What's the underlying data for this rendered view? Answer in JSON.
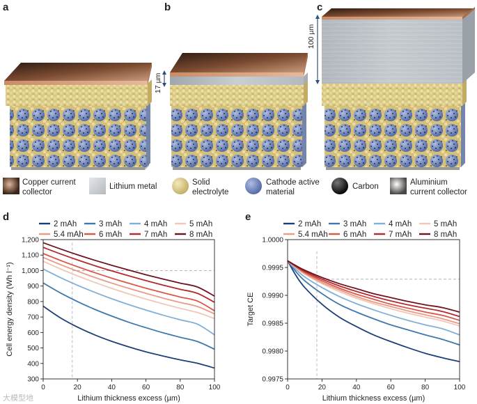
{
  "panels": {
    "a": "a",
    "b": "b",
    "c": "c",
    "d": "d",
    "e": "e"
  },
  "annotations": {
    "b_thickness": "17 µm",
    "c_thickness": "100 µm"
  },
  "material_legend": [
    {
      "line1": "Copper current",
      "line2": "collector",
      "icon": "copper-swatch-icon",
      "color": "#6a3a1f"
    },
    {
      "line1": "Lithium metal",
      "line2": "",
      "icon": "lithium-swatch-icon",
      "color": "#cfd3d8"
    },
    {
      "line1": "Solid",
      "line2": "electrolyte",
      "icon": "electrolyte-sphere-icon",
      "color": "#d9c98a"
    },
    {
      "line1": "Cathode active",
      "line2": "material",
      "icon": "cathode-sphere-icon",
      "color": "#6f86bd"
    },
    {
      "line1": "Carbon",
      "line2": "",
      "icon": "carbon-sphere-icon",
      "color": "#111111"
    },
    {
      "line1": "Aluminium",
      "line2": "current collector",
      "icon": "aluminium-swatch-icon",
      "color": "#b0aca8"
    }
  ],
  "watermark": "大模型地",
  "chart_data": [
    {
      "type": "line",
      "panel": "d",
      "title": "",
      "xlabel": "Lithium thickness excess (µm)",
      "ylabel": "Cell energy density (Wh l⁻¹)",
      "xlim": [
        0,
        100
      ],
      "ylim": [
        300,
        1200
      ],
      "xticks": [
        0,
        20,
        40,
        60,
        80,
        100
      ],
      "yticks": [
        300,
        400,
        500,
        600,
        700,
        800,
        900,
        1000,
        1100,
        1200
      ],
      "ytick_labels": [
        "300",
        "400",
        "500",
        "600",
        "700",
        "800",
        "900",
        "1,000",
        "1,100",
        "1,200"
      ],
      "reference_lines": {
        "vertical_x": 17,
        "horizontal_y": 1000
      },
      "x": [
        0,
        10,
        20,
        30,
        40,
        50,
        60,
        70,
        80,
        90,
        100
      ],
      "series": [
        {
          "name": "2 mAh",
          "color": "#1c3f78",
          "values": [
            770,
            695,
            635,
            585,
            543,
            507,
            475,
            448,
            423,
            401,
            370
          ]
        },
        {
          "name": "3 mAh",
          "color": "#3e78ad",
          "values": [
            920,
            856,
            800,
            750,
            706,
            666,
            631,
            598,
            569,
            542,
            492
          ]
        },
        {
          "name": "4 mAh",
          "color": "#7fb0d8",
          "values": [
            1010,
            955,
            905,
            860,
            818,
            780,
            745,
            712,
            682,
            654,
            585
          ]
        },
        {
          "name": "5 mAh",
          "color": "#f0c8b6",
          "values": [
            1060,
            1011,
            966,
            924,
            885,
            849,
            816,
            785,
            756,
            729,
            690
          ]
        },
        {
          "name": "5.4 mAh",
          "color": "#ea9a86",
          "values": [
            1085,
            1039,
            996,
            956,
            919,
            885,
            853,
            822,
            794,
            768,
            720
          ]
        },
        {
          "name": "6 mAh",
          "color": "#d9574a",
          "values": [
            1110,
            1066,
            1025,
            987,
            951,
            918,
            886,
            857,
            829,
            803,
            740
          ]
        },
        {
          "name": "7 mAh",
          "color": "#b32a2e",
          "values": [
            1150,
            1108,
            1069,
            1032,
            998,
            966,
            935,
            906,
            879,
            853,
            795
          ]
        },
        {
          "name": "8 mAh",
          "color": "#6e1420",
          "values": [
            1180,
            1140,
            1102,
            1067,
            1034,
            1003,
            973,
            945,
            919,
            894,
            835
          ]
        }
      ]
    },
    {
      "type": "line",
      "panel": "e",
      "title": "",
      "xlabel": "Lithium thickness excess (µm)",
      "ylabel": "Target CE",
      "xlim": [
        0,
        100
      ],
      "ylim": [
        0.9975,
        1.0
      ],
      "xticks": [
        0,
        20,
        40,
        60,
        80,
        100
      ],
      "yticks": [
        0.9975,
        0.998,
        0.9985,
        0.999,
        0.9995,
        1.0
      ],
      "ytick_labels": [
        "0.9975",
        "0.9980",
        "0.9985",
        "0.9990",
        "0.9995",
        "1.0000"
      ],
      "reference_lines": {
        "vertical_x": 17,
        "horizontal_y": 0.99929
      },
      "x": [
        0,
        5,
        10,
        20,
        30,
        40,
        50,
        60,
        70,
        80,
        90,
        100
      ],
      "series": [
        {
          "name": "2 mAh",
          "color": "#1c3f78",
          "values": [
            0.99962,
            0.99935,
            0.99914,
            0.99884,
            0.99861,
            0.99844,
            0.99829,
            0.99817,
            0.99806,
            0.99796,
            0.99788,
            0.99781
          ]
        },
        {
          "name": "3 mAh",
          "color": "#3e78ad",
          "values": [
            0.99962,
            0.99942,
            0.99926,
            0.99903,
            0.99884,
            0.9987,
            0.99858,
            0.99847,
            0.99838,
            0.99829,
            0.99821,
            0.99811
          ]
        },
        {
          "name": "4 mAh",
          "color": "#7fb0d8",
          "values": [
            0.99962,
            0.99946,
            0.99933,
            0.99914,
            0.99898,
            0.99885,
            0.99874,
            0.99864,
            0.99855,
            0.99847,
            0.9984,
            0.99829
          ]
        },
        {
          "name": "5 mAh",
          "color": "#f0c8b6",
          "values": [
            0.99962,
            0.99949,
            0.99938,
            0.99921,
            0.99907,
            0.99895,
            0.99885,
            0.99876,
            0.99868,
            0.99861,
            0.99854,
            0.99845
          ]
        },
        {
          "name": "5.4 mAh",
          "color": "#ea9a86",
          "values": [
            0.99962,
            0.9995,
            0.99939,
            0.99923,
            0.9991,
            0.99898,
            0.99888,
            0.9988,
            0.99872,
            0.99865,
            0.99858,
            0.99849
          ]
        },
        {
          "name": "6 mAh",
          "color": "#d9574a",
          "values": [
            0.99962,
            0.99951,
            0.99941,
            0.99926,
            0.99913,
            0.99902,
            0.99893,
            0.99884,
            0.99877,
            0.9987,
            0.99864,
            0.99855
          ]
        },
        {
          "name": "7 mAh",
          "color": "#b32a2e",
          "values": [
            0.99962,
            0.99952,
            0.99943,
            0.99929,
            0.99917,
            0.99907,
            0.99898,
            0.9989,
            0.99883,
            0.99877,
            0.99871,
            0.99862
          ]
        },
        {
          "name": "8 mAh",
          "color": "#6e1420",
          "values": [
            0.99962,
            0.99953,
            0.99945,
            0.99932,
            0.99921,
            0.99912,
            0.99903,
            0.99896,
            0.99889,
            0.99883,
            0.99878,
            0.9987
          ]
        }
      ]
    }
  ]
}
